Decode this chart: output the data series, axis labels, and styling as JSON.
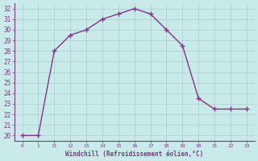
{
  "x_indices": [
    0,
    1,
    2,
    3,
    4,
    5,
    6,
    7,
    8,
    9,
    10,
    11,
    12,
    13,
    14
  ],
  "x_labels": [
    "0",
    "1",
    "11",
    "12",
    "13",
    "14",
    "15",
    "16",
    "17",
    "18",
    "19",
    "20",
    "21",
    "22",
    "23"
  ],
  "y": [
    20,
    20,
    28,
    29.5,
    30,
    31,
    31.5,
    32,
    31.5,
    30,
    28.5,
    23.5,
    22.5,
    22.5,
    22.5
  ],
  "line_color": "#883388",
  "marker": "+",
  "marker_size": 4,
  "bg_color": "#c8eae8",
  "grid_color": "#b0d0d0",
  "xlabel": "Windchill (Refroidissement éolien,°C)",
  "xlabel_color": "#883388",
  "tick_color": "#883388",
  "ylim": [
    19.5,
    32.5
  ],
  "yticks": [
    20,
    21,
    22,
    23,
    24,
    25,
    26,
    27,
    28,
    29,
    30,
    31,
    32
  ],
  "xlim": [
    -0.5,
    14.5
  ]
}
